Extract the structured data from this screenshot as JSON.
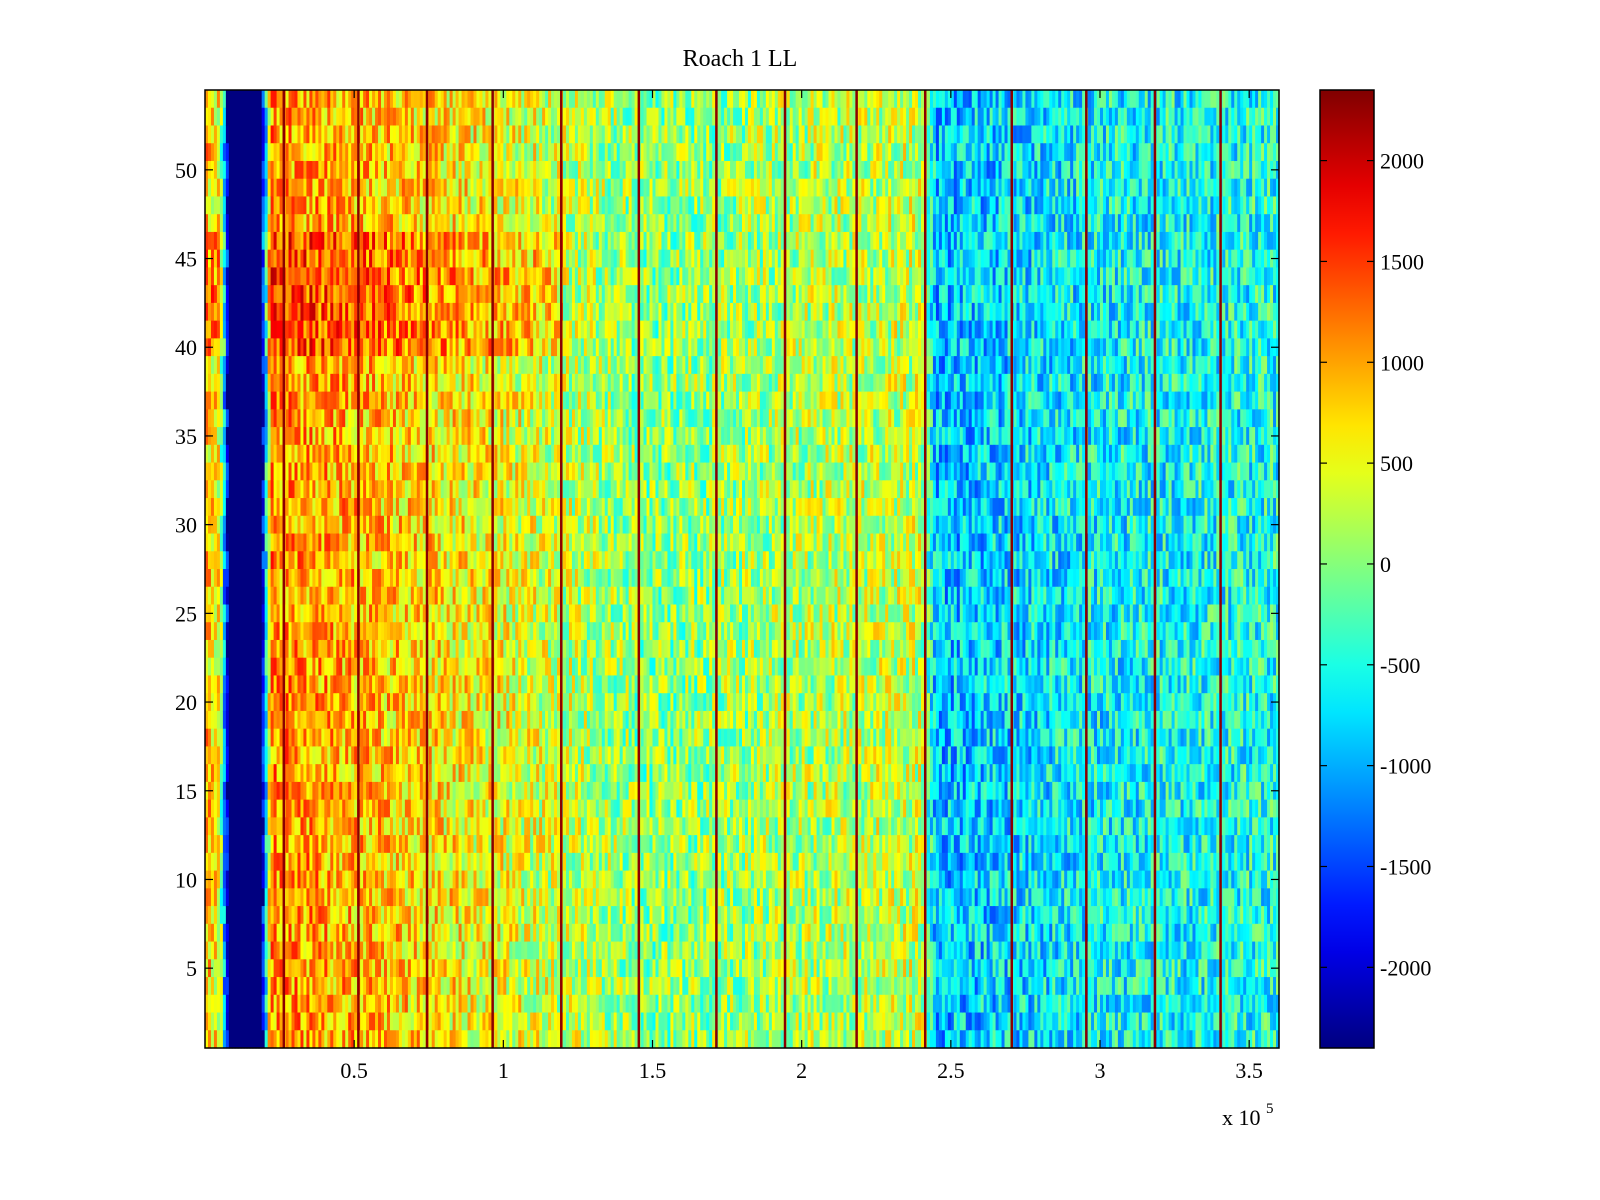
{
  "chart_data": {
    "type": "heatmap",
    "title": "Roach 1 LL",
    "xlabel": "",
    "ylabel": "",
    "x_multiplier_label": "x 10",
    "x_multiplier_exponent": "5",
    "xlim": [
      0,
      3.6
    ],
    "ylim": [
      0.5,
      54.5
    ],
    "x_ticks": [
      0.5,
      1,
      1.5,
      2,
      2.5,
      3,
      3.5
    ],
    "x_tick_labels": [
      "0.5",
      "1",
      "1.5",
      "2",
      "2.5",
      "3",
      "3.5"
    ],
    "y_ticks": [
      5,
      10,
      15,
      20,
      25,
      30,
      35,
      40,
      45,
      50
    ],
    "y_tick_labels": [
      "5",
      "10",
      "15",
      "20",
      "25",
      "30",
      "35",
      "40",
      "45",
      "50"
    ],
    "rows": 54,
    "colormap": "jet",
    "colorbar": {
      "range": [
        -2400,
        2350
      ],
      "ticks": [
        -2000,
        -1500,
        -1000,
        -500,
        0,
        500,
        1000,
        1500,
        2000
      ],
      "tick_labels": [
        "-2000",
        "-1500",
        "-1000",
        "-500",
        "0",
        "500",
        "1000",
        "1500",
        "2000"
      ]
    },
    "trend_profile": [
      {
        "x": 0.0,
        "v": 900
      },
      {
        "x": 0.05,
        "v": 500
      },
      {
        "x": 0.08,
        "v": -2400
      },
      {
        "x": 0.19,
        "v": -2400
      },
      {
        "x": 0.22,
        "v": 1100
      },
      {
        "x": 0.5,
        "v": 900
      },
      {
        "x": 1.0,
        "v": 500
      },
      {
        "x": 1.5,
        "v": 0
      },
      {
        "x": 2.0,
        "v": 200
      },
      {
        "x": 2.4,
        "v": 300
      },
      {
        "x": 2.45,
        "v": -900
      },
      {
        "x": 3.0,
        "v": -600
      },
      {
        "x": 3.6,
        "v": -500
      }
    ],
    "vertical_streaks_x": [
      0.26,
      0.51,
      0.74,
      0.96,
      1.19,
      1.45,
      1.71,
      1.94,
      2.18,
      2.41,
      2.7,
      2.95,
      3.18,
      3.4
    ]
  }
}
